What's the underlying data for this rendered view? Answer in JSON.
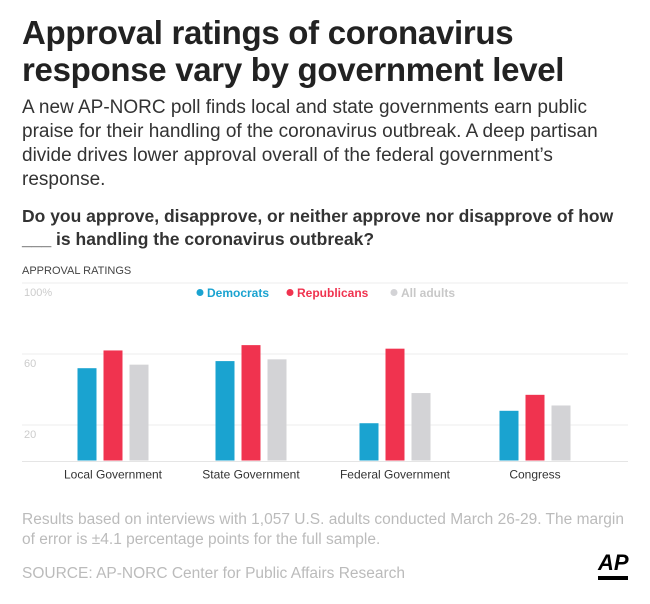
{
  "header": {
    "title": "Approval ratings of coronavirus response vary by government level",
    "subtitle": "A new AP-NORC poll finds local and state governments earn public praise for their handling of the coronavirus outbreak. A deep partisan divide drives lower approval overall of the federal government’s response.",
    "question": "Do you approve, disapprove, or neither approve nor disapprove of how ___ is handling the coronavirus outbreak?"
  },
  "chart_data": {
    "type": "bar",
    "title": "APPROVAL RATINGS",
    "categories": [
      "Local Government",
      "State Government",
      "Federal Government",
      "Congress"
    ],
    "series": [
      {
        "name": "Democrats",
        "color": "#1aa3d0",
        "values": [
          52,
          56,
          21,
          28
        ]
      },
      {
        "name": "Republicans",
        "color": "#f0334f",
        "values": [
          62,
          65,
          63,
          37
        ]
      },
      {
        "name": "All adults",
        "color": "#d3d3d6",
        "values": [
          54,
          57,
          38,
          31
        ]
      }
    ],
    "yticks": [
      {
        "value": 100,
        "label": "100%"
      },
      {
        "value": 60,
        "label": "60"
      },
      {
        "value": 20,
        "label": "20"
      }
    ],
    "ylim": [
      0,
      100
    ],
    "grid": true,
    "legend": "top-center"
  },
  "footer": {
    "note": "Results based on interviews with 1,057 U.S. adults conducted March 26-29. The margin of error is ±4.1 percentage points for the full sample.",
    "source": "SOURCE: AP-NORC Center for Public Affairs Research",
    "logo": "AP"
  }
}
